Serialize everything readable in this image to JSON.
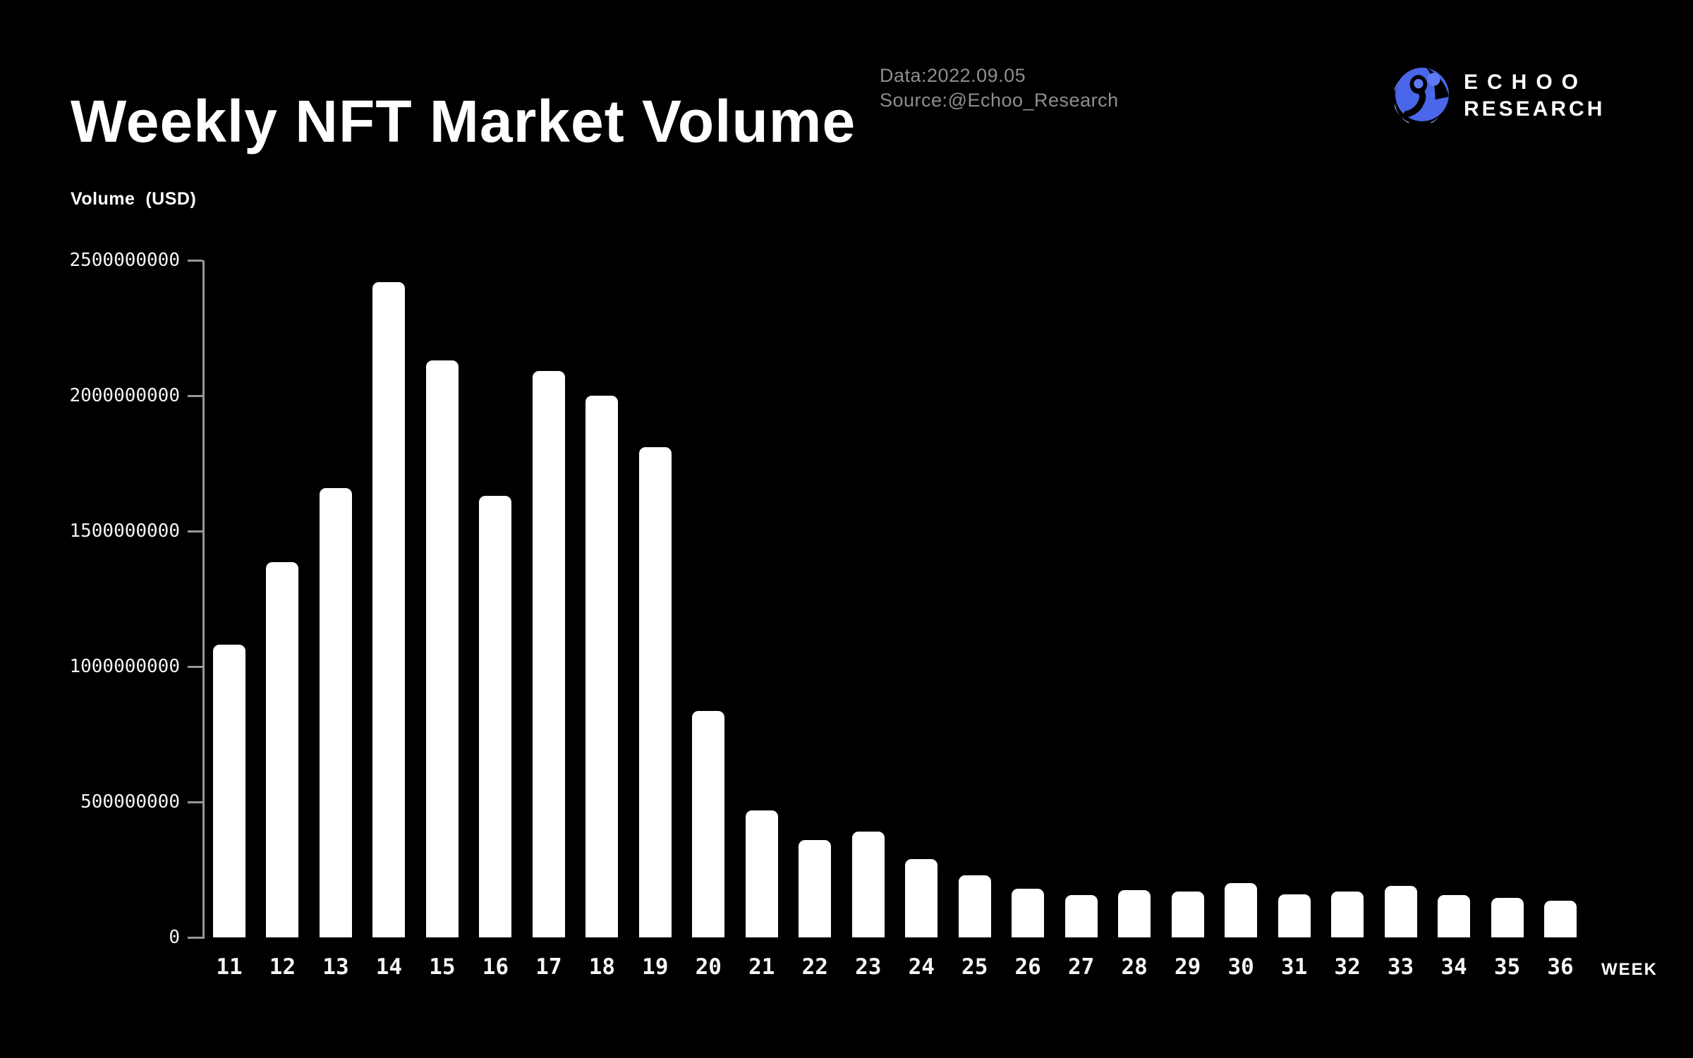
{
  "header": {
    "title": "Weekly NFT Market Volume",
    "data_label": "Data:2022.09.05",
    "source_label": "Source:@Echoo_Research",
    "brand": {
      "line1": "ECHOO",
      "line2": "RESEARCH"
    }
  },
  "colors": {
    "background": "#000000",
    "bar": "#ffffff",
    "axis": "#979797",
    "meta_text": "#8e8e8e",
    "brand_blue": "#4a66e9",
    "brand_blue_light": "#9cadf4",
    "brand_dot_blue": "#5d7af2"
  },
  "chart_data": {
    "type": "bar",
    "title": "Weekly NFT Market Volume",
    "xlabel": "WEEK",
    "ylabel": "Volume  (USD)",
    "categories": [
      "11",
      "12",
      "13",
      "14",
      "15",
      "16",
      "17",
      "18",
      "19",
      "20",
      "21",
      "22",
      "23",
      "24",
      "25",
      "26",
      "27",
      "28",
      "29",
      "30",
      "31",
      "32",
      "33",
      "34",
      "35",
      "36"
    ],
    "values": [
      1080000000,
      1385000000,
      1660000000,
      2420000000,
      2130000000,
      1630000000,
      2090000000,
      2000000000,
      1810000000,
      835000000,
      470000000,
      360000000,
      390000000,
      290000000,
      230000000,
      180000000,
      155000000,
      175000000,
      170000000,
      200000000,
      160000000,
      170000000,
      190000000,
      155000000,
      145000000,
      135000000
    ],
    "ylim": [
      0,
      2500000000
    ],
    "y_ticks": [
      0,
      500000000,
      1000000000,
      1500000000,
      2000000000,
      2500000000
    ],
    "y_tick_labels": [
      "0",
      "500000000",
      "1000000000",
      "1500000000",
      "2000000000",
      "2500000000"
    ],
    "grid": false,
    "legend": null,
    "bar_color": "#ffffff",
    "background": "#000000"
  }
}
